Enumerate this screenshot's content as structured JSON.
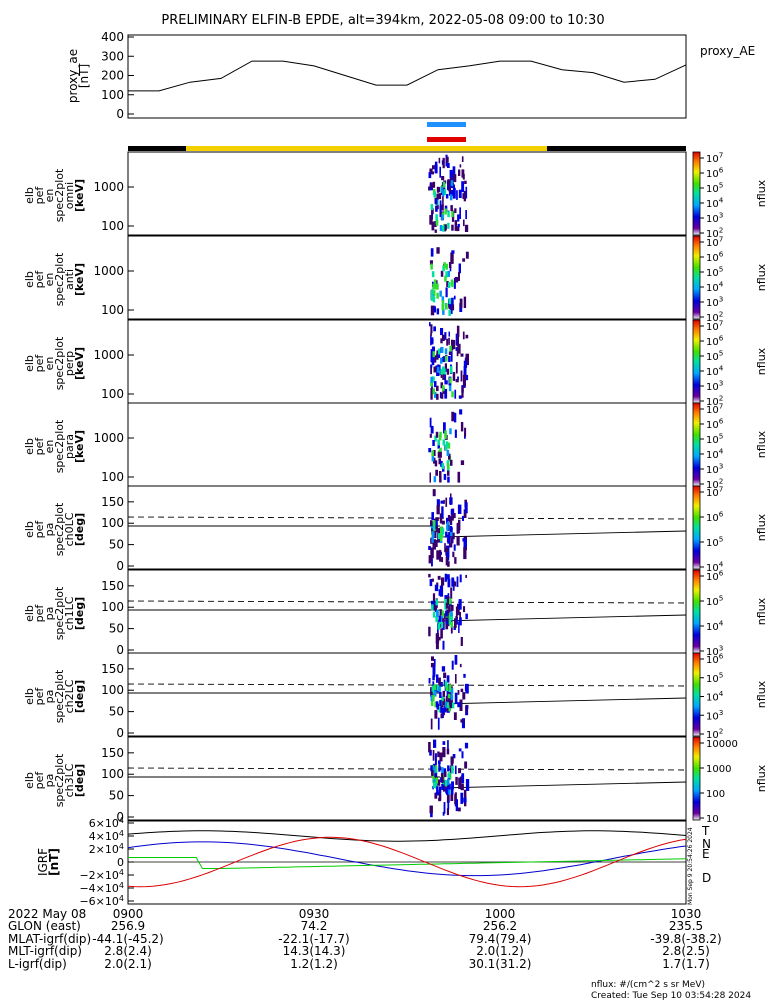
{
  "title": "PRELIMINARY ELFIN-B EPDE, alt=394km, 2022-05-08 09:00 to 10:30",
  "created": "Created: Tue Sep 10 03:54:28 2024",
  "units_note": "nflux: #/(cm^2 s sr MeV)",
  "side_stamp": "Mon Sep 9 20:54:26 2024",
  "colorbar_label": "nflux",
  "colors": {
    "orbit_black": "#000000",
    "orbit_yellow": "#f5d000",
    "science_blue": "#1e90ff",
    "science_red": "#e00000",
    "grf_T": "#000000",
    "grf_N": "#0000cc",
    "grf_E": "#00cc00",
    "grf_D": "#dd0000"
  },
  "colorbar_ticks": {
    "energy": [
      "10^7",
      "10^6",
      "10^5",
      "10^4",
      "10^3",
      "10^2"
    ],
    "pa0": [
      "10^7",
      "10^6",
      "10^5",
      "10^4"
    ],
    "pa1": [
      "10^6",
      "10^5",
      "10^4",
      "10^3"
    ],
    "pa2": [
      "10^6",
      "10^5",
      "10^4",
      "10^3",
      "10^2"
    ],
    "pa3": [
      "10000",
      "1000",
      "100",
      "10"
    ]
  },
  "xaxis": {
    "ticks": [
      "0900",
      "0930",
      "1000",
      "1030"
    ],
    "row_labels": [
      "2022 May 08",
      "GLON (east)",
      "MLAT-igrf(dip)",
      "MLT-igrf(dip)",
      "L-igrf(dip)"
    ],
    "columns": [
      [
        "0900",
        "256.9",
        "-44.1(-45.2)",
        "2.8(2.4)",
        "2.0(2.1)"
      ],
      [
        "0930",
        "74.2",
        "-22.1(-17.7)",
        "14.3(14.3)",
        "1.2(1.2)"
      ],
      [
        "1000",
        "256.2",
        "79.4(79.4)",
        "2.0(1.2)",
        "30.1(31.2)"
      ],
      [
        "1030",
        "235.5",
        "-39.8(-38.2)",
        "2.8(2.5)",
        "1.7(1.7)"
      ]
    ]
  },
  "chart_data": [
    {
      "type": "line",
      "panel": "proxy_ae",
      "ylabel": [
        "proxy_ae",
        "[nT]"
      ],
      "legend": "proxy_AE",
      "yticks": [
        "400",
        "300",
        "200",
        "100",
        "0"
      ],
      "ylim": [
        0,
        400
      ],
      "x_minutes": [
        0,
        5,
        10,
        15,
        20,
        25,
        30,
        35,
        40,
        45,
        50,
        55,
        60,
        65,
        70,
        75,
        80,
        85,
        90
      ],
      "values": [
        120,
        120,
        165,
        185,
        275,
        275,
        250,
        200,
        150,
        150,
        230,
        250,
        275,
        275,
        230,
        215,
        165,
        180,
        255
      ]
    },
    {
      "type": "heatmap",
      "panel": "omni",
      "ylabel": [
        "elb",
        "pef",
        "en",
        "spec2plot",
        "omni",
        "[keV]"
      ],
      "yticks": [
        "1000",
        "100"
      ],
      "scale": "log"
    },
    {
      "type": "heatmap",
      "panel": "anti",
      "ylabel": [
        "elb",
        "pef",
        "en",
        "spec2plot",
        "anti",
        "[keV]"
      ],
      "yticks": [
        "1000",
        "100"
      ],
      "scale": "log"
    },
    {
      "type": "heatmap",
      "panel": "perp",
      "ylabel": [
        "elb",
        "pef",
        "en",
        "spec2plot",
        "perp",
        "[keV]"
      ],
      "yticks": [
        "1000",
        "100"
      ],
      "scale": "log"
    },
    {
      "type": "heatmap",
      "panel": "para",
      "ylabel": [
        "elb",
        "pef",
        "en",
        "spec2plot",
        "para",
        "[keV]"
      ],
      "yticks": [
        "1000",
        "100"
      ],
      "scale": "log"
    },
    {
      "type": "heatmap",
      "panel": "ch0LC",
      "ylabel": [
        "elb",
        "pef",
        "pa",
        "spec2plot",
        "ch0LC",
        "[deg]"
      ],
      "yticks": [
        "150",
        "100",
        "50",
        "0"
      ],
      "ylim": [
        0,
        180
      ]
    },
    {
      "type": "heatmap",
      "panel": "ch1LC",
      "ylabel": [
        "elb",
        "pef",
        "pa",
        "spec2plot",
        "ch1LC",
        "[deg]"
      ],
      "yticks": [
        "150",
        "100",
        "50",
        "0"
      ],
      "ylim": [
        0,
        180
      ]
    },
    {
      "type": "heatmap",
      "panel": "ch2LC",
      "ylabel": [
        "elb",
        "pef",
        "pa",
        "spec2plot",
        "ch2LC",
        "[deg]"
      ],
      "yticks": [
        "150",
        "100",
        "50",
        "0"
      ],
      "ylim": [
        0,
        180
      ]
    },
    {
      "type": "heatmap",
      "panel": "ch3LC",
      "ylabel": [
        "elb",
        "pef",
        "pa",
        "spec2plot",
        "ch3LC",
        "[deg]"
      ],
      "yticks": [
        "150",
        "100",
        "50",
        "0"
      ],
      "ylim": [
        0,
        180
      ]
    },
    {
      "type": "line",
      "panel": "IGRF",
      "ylabel": [
        "IGRF",
        "[nT]"
      ],
      "yticks": [
        "6×10^4",
        "4×10^4",
        "2×10^4",
        "0",
        "−2×10^4",
        "−4×10^4",
        "−6×10^4"
      ],
      "ylim": [
        -60000,
        60000
      ],
      "series": [
        {
          "name": "T",
          "color": "#000000"
        },
        {
          "name": "N",
          "color": "#0000cc"
        },
        {
          "name": "E",
          "color": "#00cc00"
        },
        {
          "name": "D",
          "color": "#dd0000"
        }
      ]
    }
  ]
}
